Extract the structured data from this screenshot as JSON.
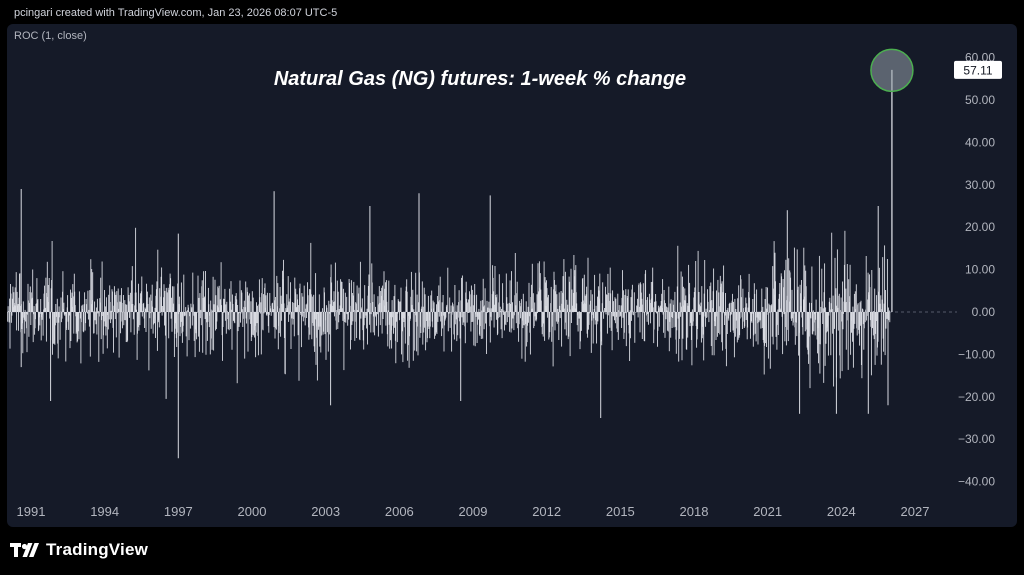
{
  "header": {
    "attribution": "pcingari created with TradingView.com, Jan 23, 2026 08:07 UTC-5"
  },
  "indicator": {
    "label": "ROC (1, close)"
  },
  "brand": {
    "name": "TradingView"
  },
  "colors": {
    "background": "#000000",
    "panel": "#151a28",
    "bars": "#d9dbe2",
    "highlight_circle": "#4caf50",
    "text": "#ffffff",
    "axis_text": "#b2b5be"
  },
  "chart_data": {
    "type": "bar",
    "title": "Natural Gas (NG) futures: 1-week % change",
    "xlabel": "",
    "ylabel": "",
    "x_range": [
      1990,
      2028
    ],
    "ylim": [
      -45,
      63
    ],
    "y_ticks": [
      60,
      50,
      40,
      30,
      20,
      10,
      0,
      -10,
      -20,
      -30,
      -40
    ],
    "y_tick_labels": [
      "60.00",
      "50.00",
      "40.00",
      "30.00",
      "20.00",
      "10.00",
      "0.00",
      "−10.00",
      "−20.00",
      "−30.00",
      "−40.00"
    ],
    "x_ticks": [
      1991,
      1994,
      1997,
      2000,
      2003,
      2006,
      2009,
      2012,
      2015,
      2018,
      2021,
      2024,
      2027
    ],
    "x_tick_labels": [
      "1991",
      "1994",
      "1997",
      "2000",
      "2003",
      "2006",
      "2009",
      "2012",
      "2015",
      "2018",
      "2021",
      "2024",
      "2027"
    ],
    "last_value": 57.11,
    "last_value_label": "57.11",
    "highlight": {
      "x": 2026.06,
      "y": 57.11
    },
    "series": [
      {
        "values_note": "weekly ROC values, generated shape approximated from chart",
        "notable_points": [
          {
            "x": 1990.6,
            "y": 29.0
          },
          {
            "x": 1990.6,
            "y": -13.0
          },
          {
            "x": 1991.8,
            "y": -21.0
          },
          {
            "x": 1996.5,
            "y": -20.5
          },
          {
            "x": 1997.0,
            "y": -34.5
          },
          {
            "x": 1997.0,
            "y": 18.5
          },
          {
            "x": 2000.9,
            "y": 28.5
          },
          {
            "x": 2003.2,
            "y": -22.0
          },
          {
            "x": 2004.8,
            "y": 25.0
          },
          {
            "x": 2006.8,
            "y": 28.0
          },
          {
            "x": 2008.5,
            "y": -21.0
          },
          {
            "x": 2009.7,
            "y": 27.5
          },
          {
            "x": 2014.2,
            "y": -25.0
          },
          {
            "x": 2022.3,
            "y": -24.0
          },
          {
            "x": 2021.8,
            "y": 24.0
          },
          {
            "x": 2023.8,
            "y": -24.0
          },
          {
            "x": 2025.1,
            "y": -24.0
          },
          {
            "x": 2025.5,
            "y": 25.0
          },
          {
            "x": 2025.9,
            "y": -22.0
          },
          {
            "x": 2026.06,
            "y": 57.11
          }
        ]
      }
    ]
  }
}
